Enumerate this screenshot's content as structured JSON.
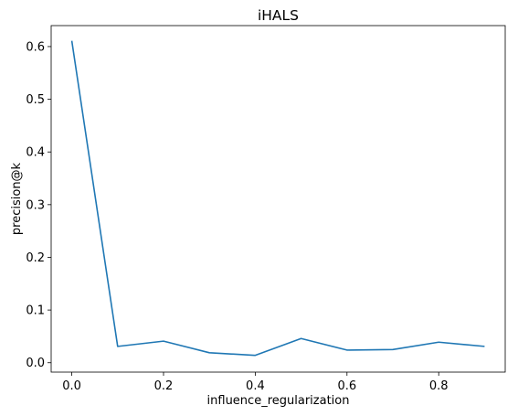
{
  "chart_data": {
    "type": "line",
    "title": "iHALS",
    "xlabel": "influence_regularization",
    "ylabel": "precision@k",
    "xlim": [
      -0.045,
      0.945
    ],
    "ylim": [
      -0.0178,
      0.6398
    ],
    "grid": false,
    "legend": "none",
    "xticks": [
      0.0,
      0.2,
      0.4,
      0.6,
      0.8
    ],
    "xtick_labels": [
      "0.0",
      "0.2",
      "0.4",
      "0.6",
      "0.8"
    ],
    "yticks": [
      0.0,
      0.1,
      0.2,
      0.3,
      0.4,
      0.5,
      0.6
    ],
    "ytick_labels": [
      "0.0",
      "0.1",
      "0.2",
      "0.3",
      "0.4",
      "0.5",
      "0.6"
    ],
    "series": [
      {
        "color": "#1f77b4",
        "x": [
          0.0,
          0.1,
          0.2,
          0.3,
          0.4,
          0.5,
          0.6,
          0.7,
          0.8,
          0.9
        ],
        "y": [
          0.611,
          0.031,
          0.041,
          0.019,
          0.014,
          0.046,
          0.024,
          0.025,
          0.039,
          0.031
        ]
      }
    ]
  }
}
